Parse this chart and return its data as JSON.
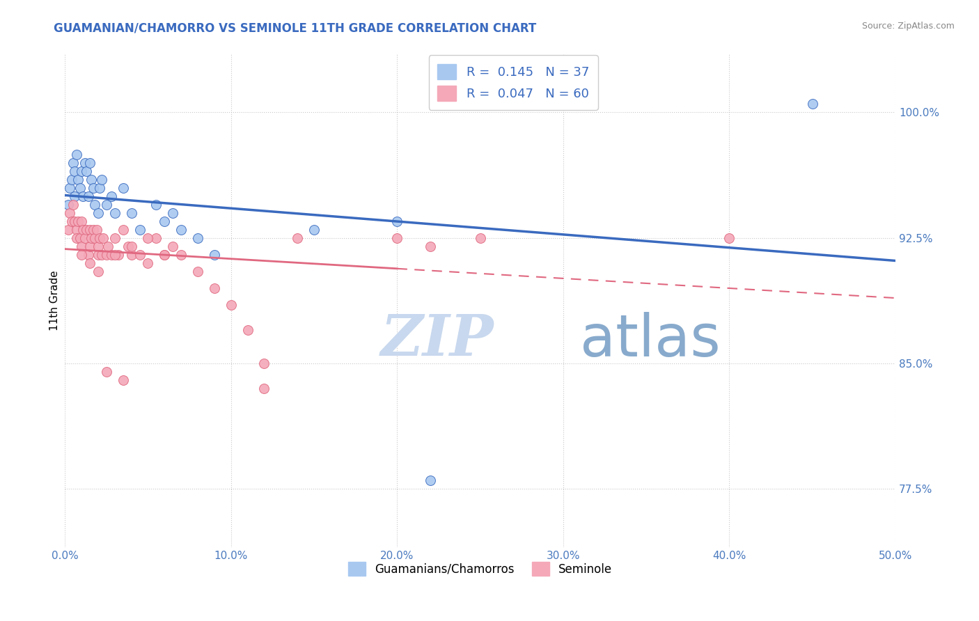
{
  "title": "GUAMANIAN/CHAMORRO VS SEMINOLE 11TH GRADE CORRELATION CHART",
  "source": "Source: ZipAtlas.com",
  "xlabel_vals": [
    0.0,
    10.0,
    20.0,
    30.0,
    40.0,
    50.0
  ],
  "ylabel_ticks": [
    "77.5%",
    "85.0%",
    "92.5%",
    "100.0%"
  ],
  "ylabel_vals": [
    77.5,
    85.0,
    92.5,
    100.0
  ],
  "xlim": [
    0.0,
    50.0
  ],
  "ylim": [
    74.0,
    103.5
  ],
  "ylabel": "11th Grade",
  "blue_R": 0.145,
  "blue_N": 37,
  "pink_R": 0.047,
  "pink_N": 60,
  "blue_label": "Guamanians/Chamorros",
  "pink_label": "Seminole",
  "blue_color": "#a8c8f0",
  "pink_color": "#f4a8b8",
  "blue_line_color": "#3a6abf",
  "pink_line_color": "#e06880",
  "title_color": "#3a6abf",
  "axis_color": "#4a7abf",
  "watermark_zip_color": "#c8d8ee",
  "watermark_atlas_color": "#88aacc",
  "blue_x": [
    0.2,
    0.3,
    0.4,
    0.5,
    0.6,
    0.6,
    0.7,
    0.8,
    0.9,
    1.0,
    1.1,
    1.2,
    1.3,
    1.4,
    1.5,
    1.6,
    1.7,
    1.8,
    2.0,
    2.1,
    2.2,
    2.5,
    2.8,
    3.0,
    3.5,
    4.0,
    4.5,
    5.5,
    6.0,
    6.5,
    7.0,
    8.0,
    9.0,
    15.0,
    20.0,
    22.0,
    45.0
  ],
  "blue_y": [
    94.5,
    95.5,
    96.0,
    97.0,
    96.5,
    95.0,
    97.5,
    96.0,
    95.5,
    96.5,
    95.0,
    97.0,
    96.5,
    95.0,
    97.0,
    96.0,
    95.5,
    94.5,
    94.0,
    95.5,
    96.0,
    94.5,
    95.0,
    94.0,
    95.5,
    94.0,
    93.0,
    94.5,
    93.5,
    94.0,
    93.0,
    92.5,
    91.5,
    93.0,
    93.5,
    78.0,
    100.5
  ],
  "pink_x": [
    0.2,
    0.3,
    0.4,
    0.5,
    0.6,
    0.7,
    0.7,
    0.8,
    0.9,
    1.0,
    1.0,
    1.1,
    1.2,
    1.3,
    1.4,
    1.5,
    1.5,
    1.6,
    1.7,
    1.8,
    1.9,
    2.0,
    2.0,
    2.1,
    2.2,
    2.3,
    2.5,
    2.6,
    2.8,
    3.0,
    3.2,
    3.5,
    3.8,
    4.0,
    4.5,
    5.0,
    5.5,
    6.0,
    6.5,
    7.0,
    8.0,
    9.0,
    10.0,
    11.0,
    12.0,
    1.0,
    1.5,
    2.0,
    3.0,
    4.0,
    5.0,
    6.0,
    14.0,
    20.0,
    22.0,
    2.5,
    3.5,
    12.0,
    25.0,
    40.0
  ],
  "pink_y": [
    93.0,
    94.0,
    93.5,
    94.5,
    93.5,
    93.0,
    92.5,
    93.5,
    92.5,
    93.5,
    92.0,
    93.0,
    92.5,
    93.0,
    91.5,
    93.0,
    92.0,
    92.5,
    93.0,
    92.5,
    93.0,
    92.0,
    91.5,
    92.5,
    91.5,
    92.5,
    91.5,
    92.0,
    91.5,
    92.5,
    91.5,
    93.0,
    92.0,
    91.5,
    91.5,
    91.0,
    92.5,
    91.5,
    92.0,
    91.5,
    90.5,
    89.5,
    88.5,
    87.0,
    85.0,
    91.5,
    91.0,
    90.5,
    91.5,
    92.0,
    92.5,
    91.5,
    92.5,
    92.5,
    92.0,
    84.5,
    84.0,
    83.5,
    92.5,
    92.5
  ],
  "pink_solid_xmax": 20.0
}
